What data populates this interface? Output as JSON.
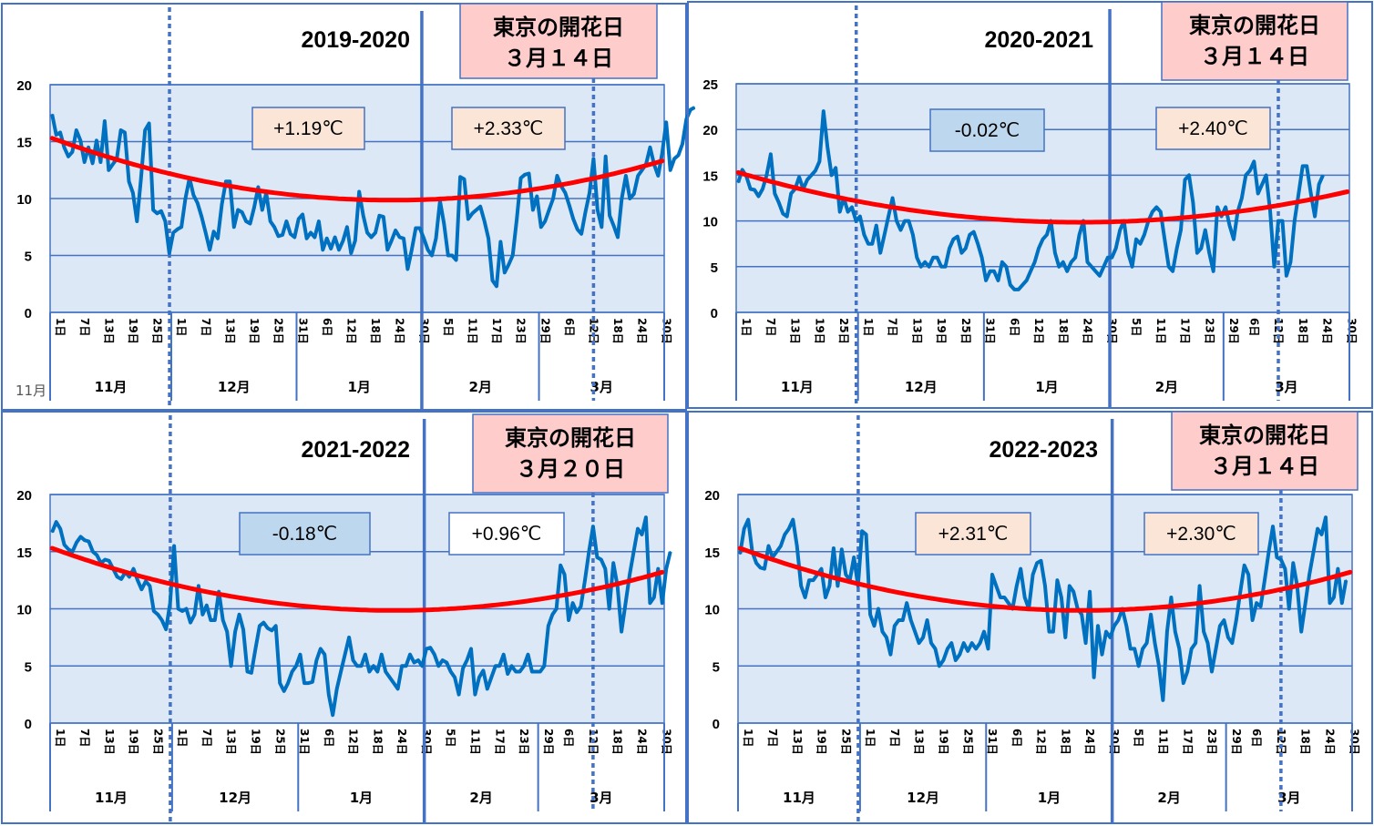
{
  "chart_data": [
    {
      "type": "line",
      "title": "2019-2020",
      "bloom_label": "東京の開花日",
      "bloom_date": "３月１４日",
      "ylim": [
        0,
        20
      ],
      "yticks": [
        "0",
        "5",
        "10",
        "15",
        "20"
      ],
      "months": [
        "11月",
        "12月",
        "1月",
        "2月",
        "3月"
      ],
      "month_days": [
        30,
        31,
        31,
        29,
        31
      ],
      "x_tick_labels": [
        [
          "1日",
          "7日",
          "13日",
          "19日",
          "25日"
        ],
        [
          "1日",
          "7日",
          "13日",
          "19日",
          "25日",
          "31日"
        ],
        [
          "6日",
          "12日",
          "18日",
          "24日",
          "30日"
        ],
        [
          "5日",
          "11日",
          "17日",
          "23日",
          "29日"
        ],
        [
          "6日",
          "12日",
          "18日",
          "24日",
          "30日"
        ]
      ],
      "anomalies": [
        {
          "text": "+1.19℃",
          "period": "Dec",
          "style": "warm"
        },
        {
          "text": "+2.33℃",
          "period": "Feb-Mar",
          "style": "warm"
        }
      ],
      "bloom_day_index": 134,
      "stray_label": "11月",
      "series": [
        {
          "name": "daily_mean_temp",
          "color": "#0070c0",
          "values": [
            17.4,
            15.6,
            15.8,
            14.5,
            13.7,
            14.1,
            16.0,
            15.1,
            13.2,
            14.5,
            13.1,
            15.1,
            13.2,
            16.8,
            12.5,
            13.0,
            13.5,
            16.0,
            15.8,
            11.5,
            10.5,
            8.0,
            11.8,
            16.0,
            16.6,
            9.0,
            8.7,
            8.9,
            8.0,
            5.2,
            7.0,
            7.3,
            7.5,
            10.0,
            11.8,
            10.3,
            9.6,
            8.4,
            7.0,
            5.5,
            7.1,
            6.5,
            9.5,
            11.5,
            11.5,
            7.5,
            9.0,
            8.8,
            8.0,
            7.8,
            9.2,
            11.0,
            9.0,
            10.5,
            8.0,
            7.5,
            6.7,
            6.8,
            8.0,
            6.9,
            6.6,
            8.2,
            8.6,
            6.5,
            7.0,
            6.6,
            8.0,
            5.5,
            6.5,
            5.6,
            6.6,
            5.5,
            6.3,
            7.5,
            5.2,
            6.3,
            10.6,
            8.5,
            7.0,
            6.6,
            7.0,
            8.5,
            8.4,
            5.5,
            6.3,
            7.2,
            6.6,
            6.5,
            3.8,
            5.5,
            7.4,
            7.4,
            6.5,
            5.5,
            5.0,
            6.5,
            9.8,
            7.8,
            5.0,
            5.0,
            4.6,
            11.9,
            11.7,
            8.2,
            8.7,
            9.0,
            9.3,
            8.0,
            6.5,
            2.8,
            2.3,
            6.2,
            3.5,
            4.2,
            5.0,
            8.2,
            11.8,
            12.1,
            12.2,
            9.0,
            10.2,
            7.5,
            8.0,
            9.0,
            10.0,
            12.0,
            11.1,
            10.5,
            9.4,
            8.2,
            7.3,
            6.9,
            8.8,
            10.5,
            13.5,
            9.0,
            7.5,
            13.7,
            8.5,
            7.6,
            6.6,
            10.0,
            12.0,
            10.0,
            10.4,
            12.0,
            12.5,
            13.0,
            14.5,
            13.0,
            12.0,
            14.0,
            16.7,
            12.5,
            13.5,
            13.8,
            14.8,
            17.0,
            17.8,
            18.0
          ]
        },
        {
          "name": "trend",
          "color": "#ff0000",
          "polynomial": {
            "a": 0.00077,
            "b": -0.1295,
            "c": 15.3
          }
        }
      ]
    },
    {
      "type": "line",
      "title": "2020-2021",
      "bloom_label": "東京の開花日",
      "bloom_date": "３月１４日",
      "ylim": [
        0,
        25
      ],
      "yticks": [
        "0",
        "5",
        "10",
        "15",
        "20",
        "25"
      ],
      "months": [
        "11月",
        "12月",
        "1月",
        "2月",
        "3月"
      ],
      "month_days": [
        30,
        31,
        31,
        28,
        31
      ],
      "x_tick_labels": [
        [
          "1日",
          "7日",
          "13日",
          "19日",
          "25日"
        ],
        [
          "1日",
          "7日",
          "13日",
          "19日",
          "25日",
          "31日"
        ],
        [
          "6日",
          "12日",
          "18日",
          "24日",
          "30日"
        ],
        [
          "5日",
          "11日",
          "17日",
          "23日",
          "29日"
        ],
        [
          "6日",
          "12日",
          "18日",
          "24日",
          "30日"
        ]
      ],
      "anomalies": [
        {
          "text": "-0.02℃",
          "period": "Dec",
          "style": "cool"
        },
        {
          "text": "+2.40℃",
          "period": "Feb-Mar",
          "style": "warm"
        }
      ],
      "bloom_day_index": 133,
      "series": [
        {
          "name": "daily_mean_temp",
          "color": "#0070c0",
          "values": [
            14.2,
            15.6,
            14.9,
            13.5,
            13.4,
            12.7,
            13.5,
            15.0,
            17.3,
            13.0,
            12.0,
            10.8,
            10.5,
            13.0,
            13.5,
            14.8,
            13.5,
            14.5,
            15.0,
            15.5,
            16.5,
            22.0,
            18.0,
            15.0,
            15.8,
            11.0,
            12.5,
            11.0,
            11.5,
            10.0,
            10.5,
            8.5,
            7.5,
            7.5,
            9.5,
            6.5,
            8.5,
            10.5,
            12.5,
            10.0,
            9.0,
            10.0,
            10.0,
            8.5,
            6.0,
            5.0,
            5.5,
            5.0,
            6.0,
            6.0,
            5.0,
            5.0,
            7.0,
            8.0,
            8.3,
            6.5,
            7.0,
            8.5,
            8.8,
            7.5,
            6.0,
            3.5,
            4.5,
            4.5,
            3.5,
            5.5,
            5.0,
            3.0,
            2.5,
            2.5,
            3.0,
            3.5,
            4.5,
            5.5,
            7.0,
            8.0,
            8.5,
            10.0,
            6.5,
            5.0,
            5.5,
            4.5,
            5.5,
            6.0,
            8.5,
            10.0,
            5.5,
            5.0,
            4.5,
            4.0,
            5.0,
            6.0,
            6.0,
            7.0,
            9.0,
            10.0,
            6.5,
            5.0,
            8.0,
            7.5,
            8.5,
            10.0,
            11.0,
            11.5,
            11.0,
            8.0,
            5.0,
            4.5,
            7.0,
            9.0,
            14.5,
            15.0,
            12.0,
            6.5,
            7.0,
            9.0,
            6.5,
            4.5,
            11.5,
            10.5,
            11.5,
            9.5,
            8.0,
            11.0,
            12.5,
            15.0,
            15.5,
            16.5,
            13.0,
            14.0,
            15.0,
            11.0,
            5.0,
            10.0,
            10.0,
            4.0,
            5.5,
            10.0,
            13.0,
            16.0,
            16.0,
            13.0,
            10.5,
            14.0,
            15.0
          ]
        },
        {
          "name": "trend",
          "color": "#ff0000",
          "polynomial": {
            "a": 0.00077,
            "b": -0.1295,
            "c": 15.3
          }
        }
      ]
    },
    {
      "type": "line",
      "title": "2021-2022",
      "bloom_label": "東京の開花日",
      "bloom_date": "３月２０日",
      "ylim": [
        0,
        20
      ],
      "yticks": [
        "0",
        "5",
        "10",
        "15",
        "20"
      ],
      "months": [
        "11月",
        "12月",
        "1月",
        "2月",
        "3月"
      ],
      "month_days": [
        30,
        31,
        31,
        28,
        31
      ],
      "x_tick_labels": [
        [
          "1日",
          "7日",
          "13日",
          "19日",
          "25日"
        ],
        [
          "1日",
          "7日",
          "13日",
          "19日",
          "25日",
          "31日"
        ],
        [
          "6日",
          "12日",
          "18日",
          "24日",
          "30日"
        ],
        [
          "5日",
          "11日",
          "17日",
          "23日",
          "29日"
        ],
        [
          "6日",
          "12日",
          "18日",
          "24日",
          "30日"
        ]
      ],
      "anomalies": [
        {
          "text": "-0.18℃",
          "period": "Dec",
          "style": "cool"
        },
        {
          "text": "+0.96℃",
          "period": "Feb-Mar",
          "style": "neutral"
        }
      ],
      "bloom_day_index": 133,
      "series": [
        {
          "name": "daily_mean_temp",
          "color": "#0070c0",
          "values": [
            16.7,
            17.6,
            17.0,
            15.6,
            15.2,
            15.0,
            15.8,
            16.3,
            16.0,
            15.9,
            15.0,
            14.7,
            14.0,
            14.3,
            14.2,
            13.5,
            12.8,
            12.6,
            13.2,
            12.8,
            13.5,
            12.5,
            11.7,
            12.4,
            12.0,
            9.8,
            9.5,
            9.0,
            8.2,
            10.5,
            15.5,
            10.0,
            9.8,
            10.0,
            8.8,
            9.5,
            12.0,
            9.5,
            10.3,
            9.0,
            9.0,
            11.5,
            9.0,
            8.0,
            5.0,
            8.0,
            9.5,
            8.2,
            4.5,
            4.4,
            6.5,
            8.5,
            8.8,
            8.3,
            8.1,
            8.5,
            3.5,
            2.8,
            3.5,
            4.5,
            5.0,
            6.0,
            3.5,
            3.5,
            3.6,
            5.5,
            6.5,
            6.0,
            2.5,
            0.7,
            3.0,
            4.5,
            6.0,
            7.5,
            5.5,
            5.0,
            5.0,
            6.0,
            4.5,
            5.0,
            4.5,
            6.0,
            4.5,
            4.0,
            3.5,
            3.0,
            5.0,
            5.0,
            6.0,
            5.3,
            5.5,
            5.0,
            6.5,
            6.6,
            6.0,
            5.0,
            5.5,
            5.3,
            4.5,
            4.0,
            2.5,
            4.8,
            5.5,
            6.5,
            2.5,
            4.0,
            4.6,
            3.0,
            4.0,
            5.0,
            5.0,
            6.0,
            4.3,
            5.0,
            4.5,
            4.5,
            5.0,
            6.0,
            4.5,
            4.5,
            4.5,
            5.0,
            8.5,
            9.5,
            10.0,
            13.8,
            13.0,
            9.0,
            10.5,
            9.7,
            10.2,
            12.5,
            15.0,
            17.2,
            14.5,
            14.3,
            13.5,
            10.0,
            14.0,
            12.0,
            8.0,
            10.5,
            13.0,
            15.0,
            17.0,
            16.5,
            18.0,
            10.5,
            11.0,
            13.5,
            10.5,
            13.5,
            15.0
          ]
        },
        {
          "name": "trend",
          "color": "#ff0000",
          "polynomial": {
            "a": 0.00077,
            "b": -0.1295,
            "c": 15.3
          }
        }
      ]
    },
    {
      "type": "line",
      "title": "2022-2023",
      "bloom_label": "東京の開花日",
      "bloom_date": "３月１４日",
      "ylim": [
        0,
        20
      ],
      "yticks": [
        "0",
        "5",
        "10",
        "15",
        "20"
      ],
      "months": [
        "11月",
        "12月",
        "1月",
        "2月",
        "3月"
      ],
      "month_days": [
        30,
        31,
        31,
        28,
        31
      ],
      "x_tick_labels": [
        [
          "1日",
          "7日",
          "13日",
          "19日",
          "25日"
        ],
        [
          "1日",
          "7日",
          "13日",
          "19日",
          "25日",
          "31日"
        ],
        [
          "6日",
          "12日",
          "18日",
          "24日",
          "30日"
        ],
        [
          "5日",
          "11日",
          "17日",
          "23日",
          "29日"
        ],
        [
          "6日",
          "12日",
          "18日",
          "24日",
          "30日"
        ]
      ],
      "anomalies": [
        {
          "text": "+2.31℃",
          "period": "Dec",
          "style": "warm"
        },
        {
          "text": "+2.30℃",
          "period": "Feb-Mar",
          "style": "warm"
        }
      ],
      "bloom_day_index": 133,
      "series": [
        {
          "name": "daily_mean_temp",
          "color": "#0070c0",
          "values": [
            14.8,
            17.0,
            17.8,
            15.0,
            14.0,
            13.6,
            13.5,
            15.5,
            14.5,
            15.0,
            15.5,
            16.5,
            17.0,
            17.8,
            15.5,
            12.0,
            11.0,
            12.5,
            12.5,
            13.0,
            13.5,
            11.0,
            12.0,
            15.3,
            12.0,
            15.2,
            13.0,
            12.5,
            14.5,
            12.0,
            16.8,
            16.5,
            9.5,
            8.5,
            10.0,
            8.0,
            7.5,
            6.0,
            8.5,
            9.0,
            9.0,
            10.5,
            9.0,
            8.0,
            7.0,
            7.5,
            9.0,
            7.0,
            6.5,
            5.0,
            5.5,
            6.5,
            7.0,
            5.5,
            6.0,
            7.0,
            6.3,
            7.0,
            6.5,
            7.0,
            8.0,
            6.5,
            13.0,
            12.0,
            11.0,
            11.0,
            10.5,
            10.0,
            12.0,
            13.5,
            11.0,
            10.0,
            13.0,
            14.0,
            14.2,
            12.0,
            8.0,
            8.0,
            12.5,
            11.0,
            7.5,
            12.0,
            11.5,
            10.0,
            9.5,
            7.0,
            11.5,
            4.0,
            8.5,
            6.0,
            8.0,
            7.5,
            8.5,
            9.0,
            10.0,
            8.5,
            6.5,
            6.5,
            5.0,
            6.5,
            7.0,
            9.5,
            7.0,
            5.0,
            2.0,
            8.0,
            11.0,
            8.0,
            6.5,
            3.5,
            4.5,
            6.5,
            7.0,
            12.0,
            8.0,
            7.0,
            4.5,
            6.5,
            8.5,
            9.0,
            7.5,
            7.0,
            9.0,
            11.5,
            13.8,
            13.0,
            9.0,
            10.5,
            10.2,
            12.5,
            15.0,
            17.2,
            14.5,
            14.3,
            13.5,
            10.0,
            14.0,
            12.0,
            8.0,
            10.5,
            13.0,
            15.0,
            17.0,
            16.5,
            18.0,
            10.5,
            11.0,
            13.5,
            10.5,
            12.5
          ]
        },
        {
          "name": "trend",
          "color": "#ff0000",
          "polynomial": {
            "a": 0.00077,
            "b": -0.1295,
            "c": 15.3
          }
        }
      ]
    }
  ],
  "colors": {
    "plot_bg": "#dce8f5",
    "frame": "#4472c4",
    "bloom_box_bg": "#ffcccc",
    "warm_box_bg": "#fbe5d6",
    "cool_box_bg": "#bdd7ee",
    "neutral_box_bg": "#ffffff",
    "temp_line": "#0070c0",
    "trend_line": "#ff0000"
  }
}
